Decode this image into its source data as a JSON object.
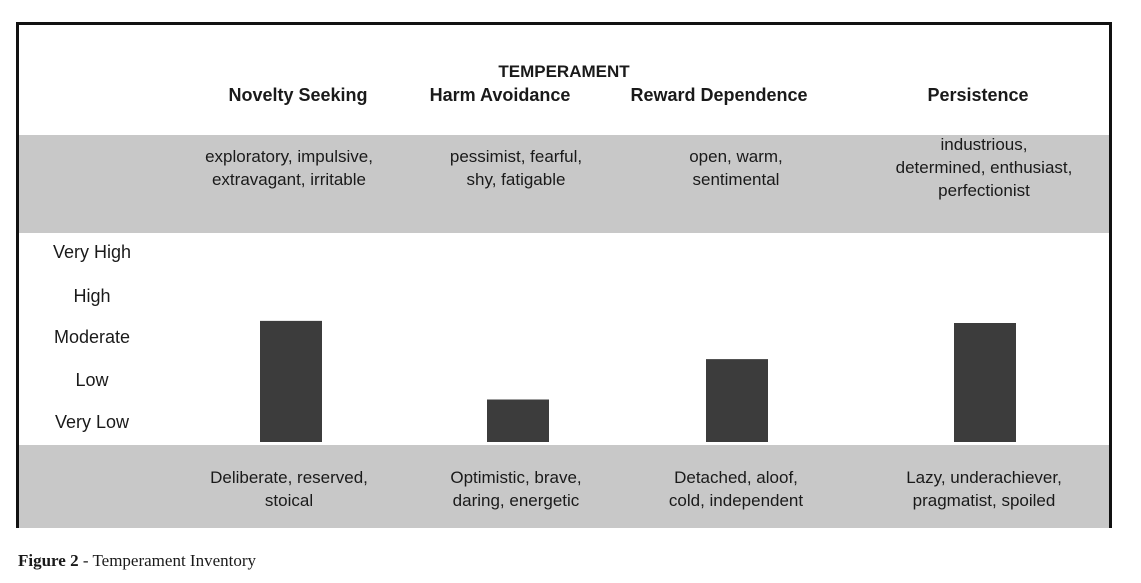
{
  "chart_data": {
    "type": "bar",
    "title": "TEMPERAMENT",
    "categories": [
      "Novelty Seeking",
      "Harm Avoidance",
      "Reward Dependence",
      "Persistence"
    ],
    "values": [
      2.85,
      1.0,
      1.95,
      2.8
    ],
    "y_levels": [
      "Very Low",
      "Low",
      "Moderate",
      "High",
      "Very High"
    ],
    "ylim": [
      0,
      5
    ],
    "high_descriptors": [
      [
        "exploratory, impulsive,",
        "extravagant, irritable"
      ],
      [
        "pessimist, fearful,",
        "shy, fatigable"
      ],
      [
        "open, warm,",
        "sentimental"
      ],
      [
        "industrious,",
        "determined, enthusiast,",
        "perfectionist"
      ]
    ],
    "low_descriptors": [
      [
        "Deliberate, reserved,",
        "stoical"
      ],
      [
        "Optimistic, brave,",
        "daring, energetic"
      ],
      [
        "Detached, aloof,",
        "cold, independent"
      ],
      [
        "Lazy, underachiever,",
        "pragmatist, spoiled"
      ]
    ],
    "bar_color": "#3c3c3c",
    "band_color": "#c8c8c8"
  },
  "caption": {
    "label": "Figure 2",
    "text": " - Temperament Inventory"
  }
}
